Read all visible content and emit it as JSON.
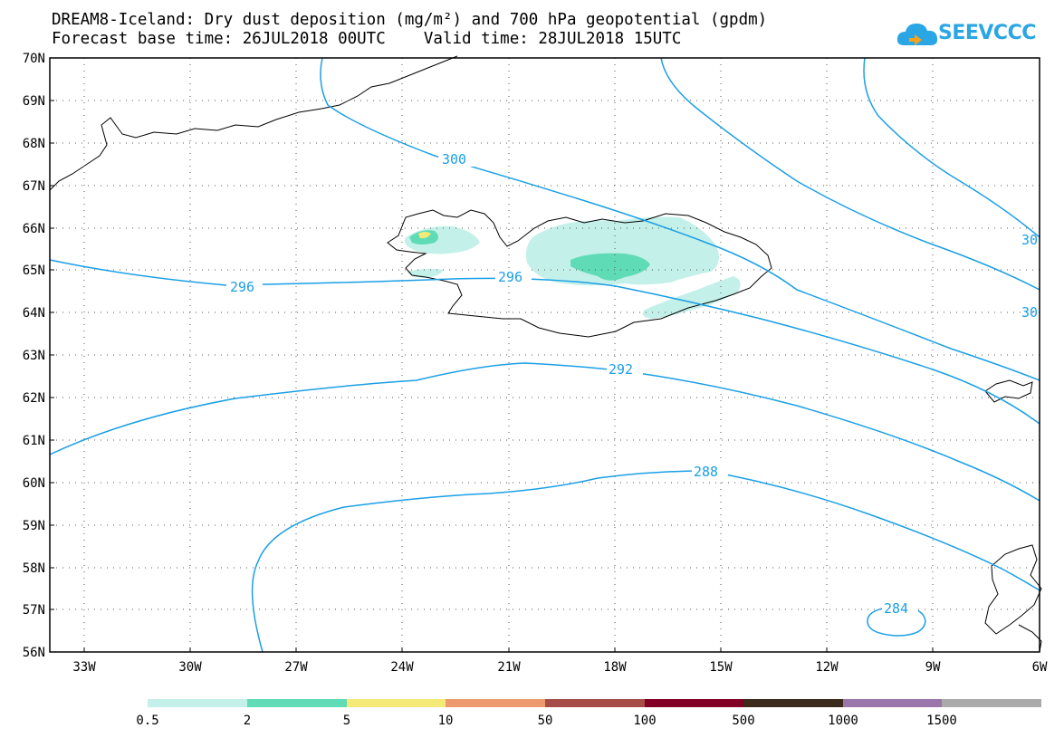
{
  "title": {
    "line1": "DREAM8-Iceland: Dry dust deposition (mg/m²) and 700 hPa geopotential (gpdm)",
    "line2": "Forecast base time: 26JUL2018 00UTC    Valid time: 28JUL2018 15UTC"
  },
  "logo": {
    "text": "SEEVCCC"
  },
  "map": {
    "lat_labels": [
      "70N",
      "69N",
      "68N",
      "67N",
      "66N",
      "65N",
      "64N",
      "63N",
      "62N",
      "61N",
      "60N",
      "59N",
      "58N",
      "57N",
      "56N"
    ],
    "lon_labels": [
      "33W",
      "30W",
      "27W",
      "24W",
      "21W",
      "18W",
      "15W",
      "12W",
      "9W",
      "6W"
    ],
    "contour_color": "#1a9fe6",
    "contour_labels": [
      "300",
      "296",
      "296",
      "292",
      "288",
      "284",
      "30",
      "30"
    ]
  },
  "legend": {
    "colors": [
      "#c4f0ea",
      "#5fdcb5",
      "#f5ea78",
      "#ec9a6e",
      "#a64d47",
      "#820024",
      "#3c2b1a",
      "#9a76aa",
      "#aaaaaa"
    ],
    "labels": [
      "0.5",
      "2",
      "5",
      "10",
      "50",
      "100",
      "500",
      "1000",
      "1500"
    ]
  }
}
